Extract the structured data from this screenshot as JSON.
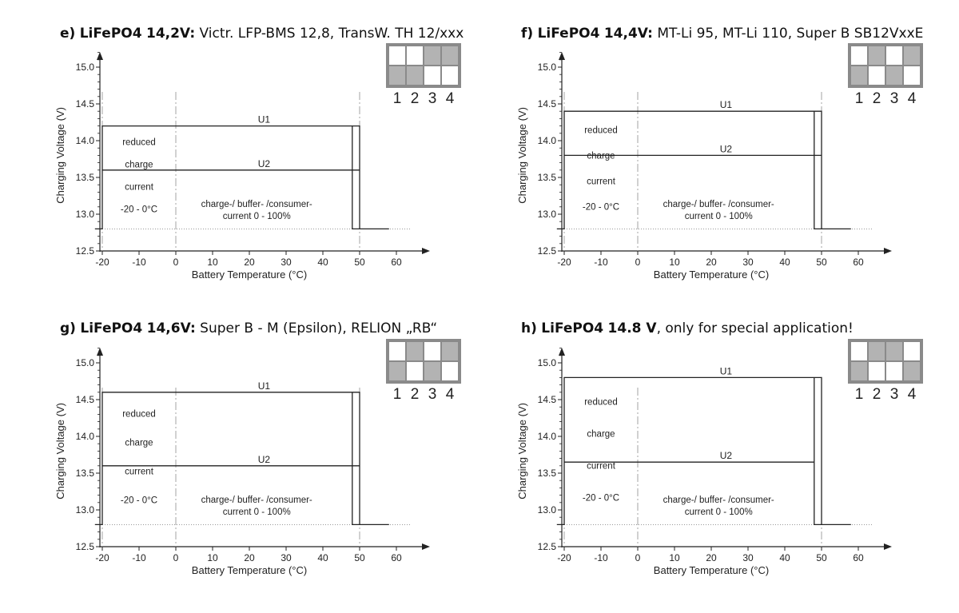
{
  "colors": {
    "switch_frame": "#8a8a8a",
    "switch_up": "#ffffff",
    "switch_down": "#b3b3b3",
    "line": "#222222"
  },
  "chart_data": [
    {
      "type": "line",
      "id": "e",
      "heading": {
        "letter": "e)",
        "chem": "LiFePO4",
        "volt": "14,2V:",
        "rest": "Victr. LFP-BMS 12,8,  TransW. TH 12/xxx",
        "rest_bold": ""
      },
      "xlabel": "Battery Temperature (°C)",
      "ylabel": "Charging Voltage (V)",
      "xlim": [
        -22,
        64
      ],
      "ylim": [
        12.5,
        15.3
      ],
      "xticks": [
        -20,
        -10,
        0,
        10,
        20,
        30,
        40,
        50,
        60
      ],
      "yticks": [
        12.5,
        13.0,
        13.5,
        14.0,
        14.5,
        15.0
      ],
      "ytick_labels": [
        "12.5",
        "13.0",
        "13.5",
        "14.0",
        "14.5",
        "15.0"
      ],
      "series": [
        {
          "name": "U1",
          "x": [
            -22,
            -20,
            -20,
            48,
            48,
            50,
            50,
            58
          ],
          "y": [
            12.8,
            12.8,
            14.2,
            14.2,
            12.8,
            12.8,
            14.2,
            12.8
          ]
        },
        {
          "name": "U2",
          "x": [
            -20,
            50
          ],
          "y": [
            13.6,
            13.6
          ]
        }
      ],
      "u1_level": 14.2,
      "u2_level": 13.6,
      "floor_level": 12.8,
      "region_left": [
        "reduced",
        "charge",
        "current",
        "-20 - 0°C"
      ],
      "region_main": [
        "charge-/ buffer- /consumer-",
        "current 0 - 100%"
      ],
      "switch_numbers": [
        "1",
        "2",
        "3",
        "4"
      ],
      "switch_positions": [
        "up",
        "up",
        "down",
        "down"
      ]
    },
    {
      "type": "line",
      "id": "f",
      "heading": {
        "letter": "f)",
        "chem": "LiFePO4",
        "volt": "14,4V:",
        "rest": "MT-Li 95, MT-Li 110,  Super B SB12VxxE",
        "rest_bold": ""
      },
      "xlabel": "Battery Temperature (°C)",
      "ylabel": "Charging Voltage (V)",
      "xlim": [
        -22,
        64
      ],
      "ylim": [
        12.5,
        15.3
      ],
      "xticks": [
        -20,
        -10,
        0,
        10,
        20,
        30,
        40,
        50,
        60
      ],
      "yticks": [
        12.5,
        13.0,
        13.5,
        14.0,
        14.5,
        15.0
      ],
      "ytick_labels": [
        "12.5",
        "13.0",
        "13.5",
        "14.0",
        "14.5",
        "15.0"
      ],
      "series": [
        {
          "name": "U1",
          "x": [
            -22,
            -20,
            -20,
            48,
            48,
            50,
            50,
            58
          ],
          "y": [
            12.8,
            12.8,
            14.4,
            14.4,
            12.8,
            12.8,
            14.4,
            12.8
          ]
        },
        {
          "name": "U2",
          "x": [
            -20,
            50
          ],
          "y": [
            13.8,
            13.8
          ]
        }
      ],
      "u1_level": 14.4,
      "u2_level": 13.8,
      "floor_level": 12.8,
      "region_left": [
        "reduced",
        "charge",
        "current",
        "-20 - 0°C"
      ],
      "region_main": [
        "charge-/ buffer- /consumer-",
        "current 0 - 100%"
      ],
      "switch_numbers": [
        "1",
        "2",
        "3",
        "4"
      ],
      "switch_positions": [
        "up",
        "down",
        "up",
        "down"
      ]
    },
    {
      "type": "line",
      "id": "g",
      "heading": {
        "letter": "g)",
        "chem": "LiFePO4",
        "volt": "14,6V:",
        "rest": "Super B - M (Epsilon),  RELION „RB“",
        "rest_bold": ""
      },
      "xlabel": "Battery Temperature (°C)",
      "ylabel": "Charging Voltage (V)",
      "xlim": [
        -22,
        64
      ],
      "ylim": [
        12.5,
        15.3
      ],
      "xticks": [
        -20,
        -10,
        0,
        10,
        20,
        30,
        40,
        50,
        60
      ],
      "yticks": [
        12.5,
        13.0,
        13.5,
        14.0,
        14.5,
        15.0
      ],
      "ytick_labels": [
        "12.5",
        "13.0",
        "13.5",
        "14.0",
        "14.5",
        "15.0"
      ],
      "series": [
        {
          "name": "U1",
          "x": [
            -22,
            -20,
            -20,
            48,
            48,
            50,
            50,
            58
          ],
          "y": [
            12.8,
            12.8,
            14.6,
            14.6,
            12.8,
            12.8,
            14.6,
            12.8
          ]
        },
        {
          "name": "U2",
          "x": [
            -20,
            50
          ],
          "y": [
            13.6,
            13.6
          ]
        }
      ],
      "u1_level": 14.6,
      "u2_level": 13.6,
      "floor_level": 12.8,
      "region_left": [
        "reduced",
        "charge",
        "current",
        "-20 - 0°C"
      ],
      "region_main": [
        "charge-/ buffer- /consumer-",
        "current 0 - 100%"
      ],
      "switch_numbers": [
        "1",
        "2",
        "3",
        "4"
      ],
      "switch_positions": [
        "up",
        "down",
        "up",
        "down"
      ]
    },
    {
      "type": "line",
      "id": "h",
      "heading": {
        "letter": "h)",
        "chem": "LiFePO4",
        "volt": "14.8 V",
        "rest": ", only for special application!",
        "rest_bold": ""
      },
      "xlabel": "Battery Temperature (°C)",
      "ylabel": "Charging Voltage (V)",
      "xlim": [
        -22,
        64
      ],
      "ylim": [
        12.5,
        15.3
      ],
      "xticks": [
        -20,
        -10,
        0,
        10,
        20,
        30,
        40,
        50,
        60
      ],
      "yticks": [
        12.5,
        13.0,
        13.5,
        14.0,
        14.5,
        15.0
      ],
      "ytick_labels": [
        "12.5",
        "13.0",
        "13.5",
        "14.0",
        "14.5",
        "15.0"
      ],
      "series": [
        {
          "name": "U1",
          "x": [
            -22,
            -20,
            -20,
            48,
            48,
            50,
            50,
            58
          ],
          "y": [
            12.8,
            12.8,
            14.8,
            14.8,
            12.8,
            12.8,
            14.8,
            12.8
          ]
        },
        {
          "name": "U2",
          "x": [
            -20,
            48
          ],
          "y": [
            13.65,
            13.65
          ]
        }
      ],
      "u1_level": 14.8,
      "u2_level": 13.65,
      "floor_level": 12.8,
      "region_left": [
        "reduced",
        "charge",
        "current",
        "-20 - 0°C"
      ],
      "region_main": [
        "charge-/ buffer- /consumer-",
        "current 0 - 100%"
      ],
      "switch_numbers": [
        "1",
        "2",
        "3",
        "4"
      ],
      "switch_positions": [
        "up",
        "down",
        "down",
        "up"
      ]
    }
  ]
}
